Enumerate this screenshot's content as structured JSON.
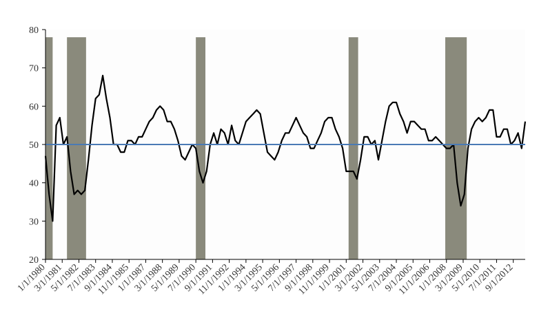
{
  "chart_data": {
    "type": "line",
    "x": [
      "1/1/1980",
      "4/1/1980",
      "7/1/1980",
      "10/1/1980",
      "1/1/1981",
      "4/1/1981",
      "7/1/1981",
      "10/1/1981",
      "1/1/1982",
      "4/1/1982",
      "7/1/1982",
      "10/1/1982",
      "1/1/1983",
      "4/1/1983",
      "7/1/1983",
      "10/1/1983",
      "1/1/1984",
      "4/1/1984",
      "7/1/1984",
      "10/1/1984",
      "1/1/1985",
      "4/1/1985",
      "7/1/1985",
      "10/1/1985",
      "1/1/1986",
      "4/1/1986",
      "7/1/1986",
      "10/1/1986",
      "1/1/1987",
      "4/1/1987",
      "7/1/1987",
      "10/1/1987",
      "1/1/1988",
      "4/1/1988",
      "7/1/1988",
      "10/1/1988",
      "1/1/1989",
      "4/1/1989",
      "7/1/1989",
      "10/1/1989",
      "1/1/1990",
      "4/1/1990",
      "7/1/1990",
      "10/1/1990",
      "1/1/1991",
      "4/1/1991",
      "7/1/1991",
      "10/1/1991",
      "1/1/1992",
      "4/1/1992",
      "7/1/1992",
      "10/1/1992",
      "1/1/1993",
      "4/1/1993",
      "7/1/1993",
      "10/1/1993",
      "1/1/1994",
      "4/1/1994",
      "7/1/1994",
      "10/1/1994",
      "1/1/1995",
      "4/1/1995",
      "7/1/1995",
      "10/1/1995",
      "1/1/1996",
      "4/1/1996",
      "7/1/1996",
      "10/1/1996",
      "1/1/1997",
      "4/1/1997",
      "7/1/1997",
      "10/1/1997",
      "1/1/1998",
      "4/1/1998",
      "7/1/1998",
      "10/1/1998",
      "1/1/1999",
      "4/1/1999",
      "7/1/1999",
      "10/1/1999",
      "1/1/2000",
      "4/1/2000",
      "7/1/2000",
      "10/1/2000",
      "1/1/2001",
      "4/1/2001",
      "7/1/2001",
      "10/1/2001",
      "1/1/2002",
      "4/1/2002",
      "7/1/2002",
      "10/1/2002",
      "1/1/2003",
      "4/1/2003",
      "7/1/2003",
      "10/1/2003",
      "1/1/2004",
      "4/1/2004",
      "7/1/2004",
      "10/1/2004",
      "1/1/2005",
      "4/1/2005",
      "7/1/2005",
      "10/1/2005",
      "1/1/2006",
      "4/1/2006",
      "7/1/2006",
      "10/1/2006",
      "1/1/2007",
      "4/1/2007",
      "7/1/2007",
      "10/1/2007",
      "1/1/2008",
      "4/1/2008",
      "7/1/2008",
      "10/1/2008",
      "1/1/2009",
      "4/1/2009",
      "7/1/2009",
      "10/1/2009",
      "1/1/2010",
      "4/1/2010",
      "7/1/2010",
      "10/1/2010",
      "1/1/2011",
      "4/1/2011",
      "7/1/2011",
      "10/1/2011",
      "1/1/2012",
      "4/1/2012",
      "7/1/2012",
      "10/1/2012",
      "1/1/2013",
      "4/1/2013",
      "7/1/2013"
    ],
    "series": [
      {
        "color": "#000000",
        "values": [
          47,
          37,
          30,
          55,
          57,
          50,
          52,
          43,
          37,
          38,
          37,
          38,
          46,
          55,
          62,
          63,
          68,
          62,
          57,
          50,
          50,
          48,
          48,
          51,
          51,
          50,
          52,
          52,
          54,
          56,
          57,
          59,
          60,
          59,
          56,
          56,
          54,
          51,
          47,
          46,
          48,
          50,
          49,
          43,
          40,
          43,
          50,
          53,
          50,
          54,
          53,
          50,
          55,
          51,
          50,
          53,
          56,
          57,
          58,
          59,
          58,
          53,
          48,
          47,
          46,
          48,
          51,
          53,
          53,
          55,
          57,
          55,
          53,
          52,
          49,
          49,
          51,
          53,
          56,
          57,
          57,
          54,
          52,
          49,
          43,
          43,
          43,
          41,
          46,
          52,
          52,
          50,
          51,
          46,
          51,
          56,
          60,
          61,
          61,
          58,
          56,
          53,
          56,
          56,
          55,
          54,
          54,
          51,
          51,
          52,
          51,
          50,
          49,
          49,
          50,
          40,
          34,
          37,
          49,
          54,
          56,
          57,
          56,
          57,
          59,
          59,
          52,
          52,
          54,
          54,
          50,
          51,
          53,
          49,
          56
        ]
      }
    ],
    "hline": {
      "value": 50,
      "color": "#4a7ab5"
    },
    "recessions": [
      {
        "start": "1/1/1980",
        "end": "7/1/1980"
      },
      {
        "start": "7/1/1981",
        "end": "11/1/1982"
      },
      {
        "start": "7/1/1990",
        "end": "3/1/1991"
      },
      {
        "start": "3/1/2001",
        "end": "11/1/2001"
      },
      {
        "start": "12/1/2007",
        "end": "6/1/2009"
      }
    ],
    "recession_top": 78,
    "recession_color": "#8a8a7c",
    "xlim": [
      "1/1/1980",
      "7/1/2013"
    ],
    "xticks": [
      "1/1/1980",
      "3/1/1981",
      "5/1/1982",
      "7/1/1983",
      "9/1/1984",
      "11/1/1985",
      "1/1/1987",
      "3/1/1988",
      "5/1/1989",
      "7/1/1990",
      "9/1/1991",
      "11/1/1992",
      "1/1/1994",
      "3/1/1995",
      "5/1/1996",
      "7/1/1997",
      "9/1/1998",
      "11/1/1999",
      "1/1/2001",
      "3/1/2002",
      "5/1/2003",
      "7/1/2004",
      "9/1/2005",
      "11/1/2006",
      "1/1/2008",
      "3/1/2009",
      "5/1/2010",
      "7/1/2011",
      "9/1/2012"
    ],
    "ylim": [
      20,
      80
    ],
    "yticks": [
      20,
      30,
      40,
      50,
      60,
      70,
      80
    ]
  }
}
